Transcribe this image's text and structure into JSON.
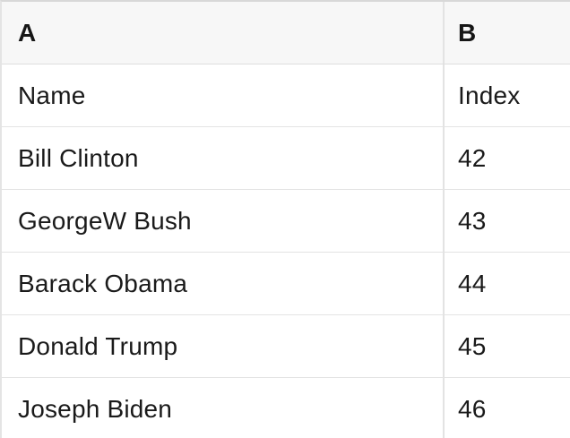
{
  "spreadsheet": {
    "column_letters": [
      "A",
      "B"
    ],
    "field_row": {
      "name_label": "Name",
      "index_label": "Index"
    },
    "rows": [
      {
        "name": "Bill Clinton",
        "index": "42"
      },
      {
        "name": "GeorgeW Bush",
        "index": "43"
      },
      {
        "name": "Barack Obama",
        "index": "44"
      },
      {
        "name": "Donald Trump",
        "index": "45"
      },
      {
        "name": "Joseph Biden",
        "index": "46"
      }
    ]
  },
  "colors": {
    "header_background": "#f7f7f7",
    "row_background": "#ffffff",
    "border": "#e3e3e3",
    "top_border": "#d8d8d8",
    "text": "#1a1a1a"
  }
}
